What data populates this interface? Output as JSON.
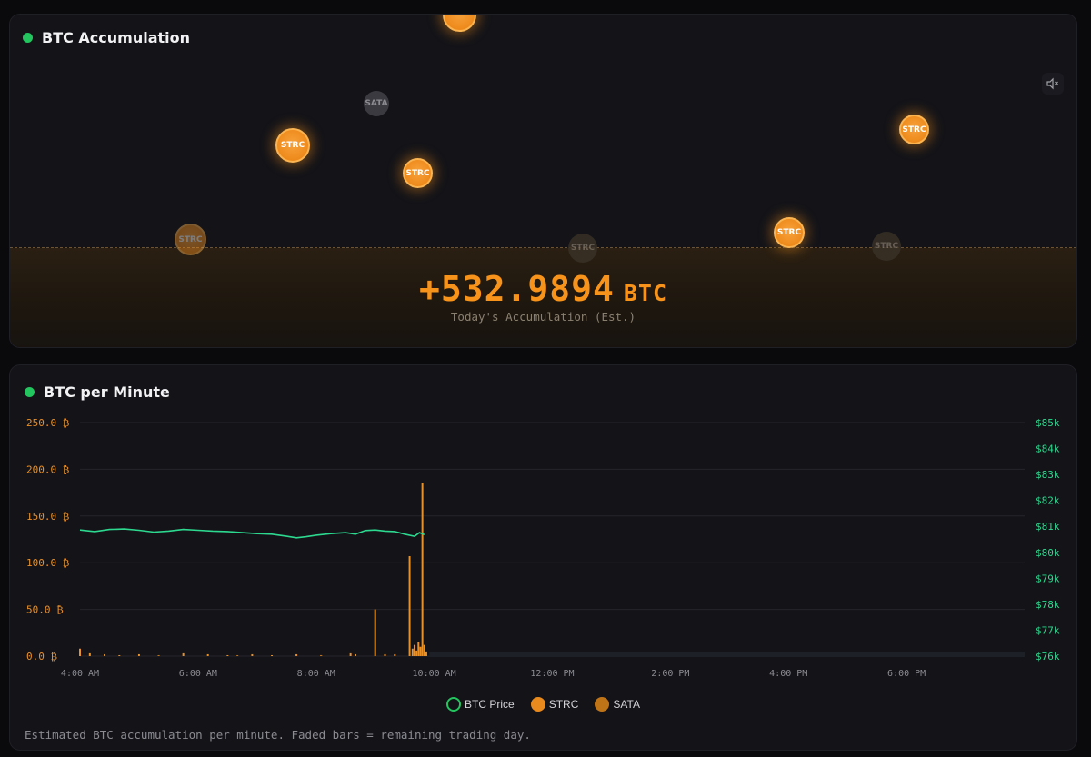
{
  "accumulation": {
    "title": "BTC Accumulation",
    "value": "+532.9894",
    "unit": "BTC",
    "caption": "Today's Accumulation (Est.)",
    "coins": [
      {
        "label": "STRC",
        "kind": "strc"
      },
      {
        "label": "SATA",
        "kind": "sata"
      },
      {
        "label": "STRC",
        "kind": "strc"
      },
      {
        "label": "STRC",
        "kind": "strc"
      },
      {
        "label": "STRC",
        "kind": "strc-faded"
      },
      {
        "label": "STRC",
        "kind": "gray"
      },
      {
        "label": "STRC",
        "kind": "strc"
      },
      {
        "label": "STRC",
        "kind": "gray"
      },
      {
        "label": "STRC",
        "kind": "strc"
      }
    ]
  },
  "per_minute": {
    "title": "BTC per Minute",
    "footnote": "Estimated BTC accumulation per minute. Faded bars = remaining trading day.",
    "legend": [
      {
        "label": "BTC Price",
        "kind": "price"
      },
      {
        "label": "STRC",
        "kind": "strc"
      },
      {
        "label": "SATA",
        "kind": "sata"
      }
    ]
  },
  "colors": {
    "accent": "#f7931a",
    "price": "#2dd98f",
    "status": "#22c55e"
  },
  "chart_data": {
    "type": "bar",
    "x_axis": {
      "range": [
        "4:00 AM",
        "8:00 PM"
      ],
      "ticks": [
        "4:00 AM",
        "6:00 AM",
        "8:00 AM",
        "10:00 AM",
        "12:00 PM",
        "2:00 PM",
        "4:00 PM",
        "6:00 PM"
      ]
    },
    "y_left": {
      "ticks": [
        "0.0 ₿",
        "50.0 ₿",
        "100.0 ₿",
        "150.0 ₿",
        "200.0 ₿",
        "250.0 ₿"
      ],
      "range": [
        0,
        250
      ]
    },
    "y_right": {
      "ticks": [
        "$76k",
        "$77k",
        "$78k",
        "$79k",
        "$80k",
        "$81k",
        "$82k",
        "$83k",
        "$84k",
        "$85k"
      ],
      "range": [
        76000,
        85000
      ]
    },
    "grid": true,
    "legend_position": "bottom-center",
    "series": [
      {
        "name": "STRC",
        "type": "bar",
        "points": [
          [
            "4:00",
            8
          ],
          [
            "4:10",
            3
          ],
          [
            "4:25",
            2
          ],
          [
            "4:40",
            1
          ],
          [
            "5:00",
            2
          ],
          [
            "5:20",
            1
          ],
          [
            "5:45",
            3
          ],
          [
            "6:10",
            2
          ],
          [
            "6:30",
            1
          ],
          [
            "6:55",
            2
          ],
          [
            "7:15",
            1
          ],
          [
            "7:40",
            2
          ],
          [
            "8:05",
            1
          ],
          [
            "8:35",
            3
          ],
          [
            "8:40",
            2
          ],
          [
            "9:00",
            50
          ],
          [
            "9:10",
            2
          ],
          [
            "9:20",
            2
          ],
          [
            "9:35",
            107
          ],
          [
            "9:38",
            8
          ],
          [
            "9:40",
            12
          ],
          [
            "9:42",
            6
          ],
          [
            "9:44",
            15
          ],
          [
            "9:46",
            10
          ],
          [
            "9:48",
            185
          ],
          [
            "9:50",
            12
          ],
          [
            "9:52",
            5
          ]
        ]
      },
      {
        "name": "SATA",
        "type": "bar",
        "points": [
          [
            "5:20",
            1
          ],
          [
            "6:40",
            1
          ],
          [
            "8:05",
            1
          ]
        ]
      },
      {
        "name": "BTC Price",
        "type": "line",
        "points": [
          [
            "4:00",
            80860
          ],
          [
            "4:15",
            80800
          ],
          [
            "4:30",
            80880
          ],
          [
            "4:45",
            80900
          ],
          [
            "5:00",
            80850
          ],
          [
            "5:15",
            80780
          ],
          [
            "5:30",
            80820
          ],
          [
            "5:45",
            80880
          ],
          [
            "6:00",
            80850
          ],
          [
            "6:15",
            80820
          ],
          [
            "6:30",
            80800
          ],
          [
            "6:45",
            80760
          ],
          [
            "7:00",
            80720
          ],
          [
            "7:15",
            80700
          ],
          [
            "7:30",
            80620
          ],
          [
            "7:40",
            80560
          ],
          [
            "7:50",
            80600
          ],
          [
            "8:00",
            80660
          ],
          [
            "8:15",
            80720
          ],
          [
            "8:30",
            80760
          ],
          [
            "8:40",
            80700
          ],
          [
            "8:50",
            80840
          ],
          [
            "9:00",
            80860
          ],
          [
            "9:10",
            80820
          ],
          [
            "9:20",
            80800
          ],
          [
            "9:30",
            80700
          ],
          [
            "9:40",
            80620
          ],
          [
            "9:45",
            80760
          ],
          [
            "9:50",
            80680
          ]
        ]
      }
    ]
  }
}
